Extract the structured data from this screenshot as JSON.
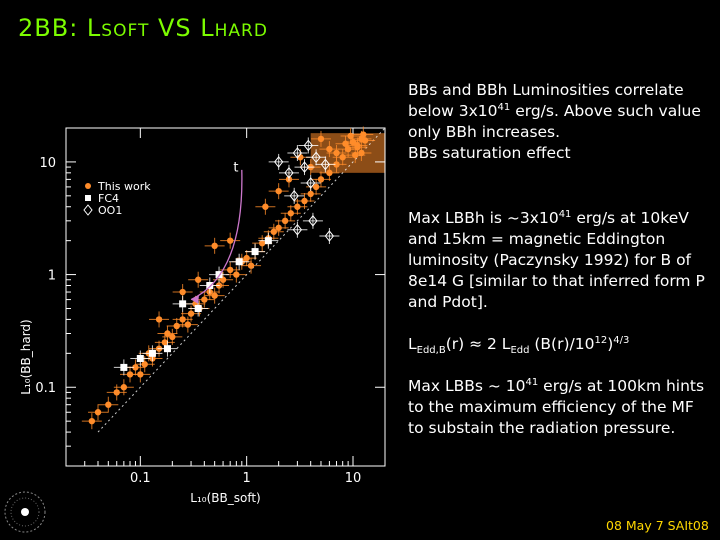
{
  "title": {
    "pre": "2BB: ",
    "l1_cap": "L",
    "l1_sub": "SOFT",
    "vs": " VS ",
    "l2_cap": "L",
    "l2_sub": "HARD"
  },
  "text": {
    "p1": "BBs and BBh  Luminosities correlate below 3x10{41} erg/s. Above such value only BBh increases.",
    "p1b": "BBs saturation effect",
    "p2": "Max LBBh is ~3x10{41} erg/s at 10keV and 15km = magnetic Eddington luminosity (Paczynsky 1992) for B of 8e14 G [similar to that  inferred form P and Pdot].",
    "p3": "L_{Edd,B}(r) ≈ 2 L_{Edd} (B(r)/10{12}){4/3}",
    "p4": "Max LBBs ~ 10{41} erg/s at 100km hints to the maximum efficiency of the MF to substain the radiation pressure."
  },
  "footer": "08 May 7  SAIt08",
  "colors": {
    "title": "#7CFC00",
    "footer": "#FFD700",
    "orange": "#FF8C2A",
    "arrow": "#CC77CC",
    "background": "#000000"
  },
  "chart_data": {
    "type": "scatter",
    "xlabel": "L₁₀(BB_soft)",
    "ylabel": "L₁₀(BB_hard)",
    "xscale": "log",
    "yscale": "log",
    "xlim": [
      0.02,
      20
    ],
    "ylim": [
      0.02,
      20
    ],
    "xticks": [
      {
        "v": 0.1,
        "label": "0.1"
      },
      {
        "v": 1,
        "label": "1"
      },
      {
        "v": 10,
        "label": "10"
      }
    ],
    "yticks": [
      {
        "v": 0.1,
        "label": "0.1"
      },
      {
        "v": 1,
        "label": "1"
      },
      {
        "v": 10,
        "label": "10"
      }
    ],
    "legend": {
      "position": "top-left",
      "entries": [
        "This work",
        "FC4",
        "OO1"
      ]
    },
    "annotation": "t",
    "series": [
      {
        "name": "This work",
        "marker": "circle",
        "color": "#FF8C2A",
        "points": [
          [
            0.035,
            0.05
          ],
          [
            0.04,
            0.06
          ],
          [
            0.05,
            0.07
          ],
          [
            0.06,
            0.09
          ],
          [
            0.07,
            0.1
          ],
          [
            0.08,
            0.13
          ],
          [
            0.09,
            0.15
          ],
          [
            0.1,
            0.13
          ],
          [
            0.11,
            0.16
          ],
          [
            0.12,
            0.2
          ],
          [
            0.13,
            0.18
          ],
          [
            0.15,
            0.22
          ],
          [
            0.17,
            0.25
          ],
          [
            0.18,
            0.3
          ],
          [
            0.2,
            0.28
          ],
          [
            0.22,
            0.35
          ],
          [
            0.25,
            0.4
          ],
          [
            0.28,
            0.36
          ],
          [
            0.3,
            0.45
          ],
          [
            0.33,
            0.55
          ],
          [
            0.36,
            0.5
          ],
          [
            0.4,
            0.6
          ],
          [
            0.45,
            0.7
          ],
          [
            0.5,
            0.65
          ],
          [
            0.55,
            0.8
          ],
          [
            0.6,
            0.9
          ],
          [
            0.7,
            1.1
          ],
          [
            0.8,
            1.0
          ],
          [
            0.9,
            1.3
          ],
          [
            1.0,
            1.4
          ],
          [
            1.1,
            1.2
          ],
          [
            1.2,
            1.6
          ],
          [
            1.4,
            1.9
          ],
          [
            1.6,
            2.1
          ],
          [
            1.8,
            2.4
          ],
          [
            2.0,
            2.6
          ],
          [
            2.3,
            3.0
          ],
          [
            2.6,
            3.5
          ],
          [
            3.0,
            4.0
          ],
          [
            3.5,
            4.5
          ],
          [
            4.0,
            5.2
          ],
          [
            4.5,
            6.0
          ],
          [
            5.0,
            7.0
          ],
          [
            6.0,
            8.0
          ],
          [
            7.0,
            9.5
          ],
          [
            8.0,
            11.0
          ],
          [
            9.0,
            13.0
          ],
          [
            10.0,
            15.0
          ],
          [
            11.0,
            14.0
          ],
          [
            12.0,
            16.0
          ],
          [
            12.0,
            12.0
          ],
          [
            13.0,
            15.5
          ],
          [
            11.0,
            13.5
          ],
          [
            9.5,
            17.0
          ],
          [
            12.5,
            17.5
          ],
          [
            10.5,
            11.5
          ],
          [
            2.5,
            7.0
          ],
          [
            4.0,
            9.0
          ],
          [
            6.0,
            13.0
          ],
          [
            3.2,
            11.0
          ],
          [
            5.0,
            16.0
          ],
          [
            7.0,
            12.0
          ],
          [
            0.5,
            1.8
          ],
          [
            0.35,
            0.9
          ],
          [
            0.7,
            2.0
          ],
          [
            0.25,
            0.7
          ],
          [
            0.15,
            0.4
          ],
          [
            1.5,
            4.0
          ],
          [
            2.0,
            5.5
          ],
          [
            8.5,
            14.5
          ]
        ]
      },
      {
        "name": "FC4",
        "marker": "square",
        "color": "#FFFFFF",
        "points": [
          [
            0.07,
            0.15
          ],
          [
            0.1,
            0.18
          ],
          [
            0.13,
            0.2
          ],
          [
            0.35,
            0.5
          ],
          [
            0.45,
            0.8
          ],
          [
            0.55,
            1.0
          ],
          [
            0.85,
            1.3
          ],
          [
            1.2,
            1.6
          ],
          [
            1.6,
            2.0
          ],
          [
            0.25,
            0.55
          ],
          [
            0.18,
            0.22
          ]
        ]
      },
      {
        "name": "OO1",
        "marker": "diamond",
        "color": "#FFFFFF",
        "points": [
          [
            2.0,
            10.0
          ],
          [
            2.5,
            8.0
          ],
          [
            3.0,
            12.0
          ],
          [
            3.5,
            9.0
          ],
          [
            4.0,
            6.5
          ],
          [
            4.5,
            11.0
          ],
          [
            5.5,
            9.5
          ],
          [
            3.0,
            2.5
          ],
          [
            4.2,
            3.0
          ],
          [
            6.0,
            2.2
          ],
          [
            3.8,
            14.0
          ],
          [
            2.8,
            5.0
          ]
        ]
      }
    ],
    "fit_line": [
      [
        0.04,
        0.04
      ],
      [
        20,
        20
      ]
    ],
    "saturation_band": {
      "x": [
        4,
        20
      ],
      "y": [
        8,
        18
      ]
    }
  }
}
